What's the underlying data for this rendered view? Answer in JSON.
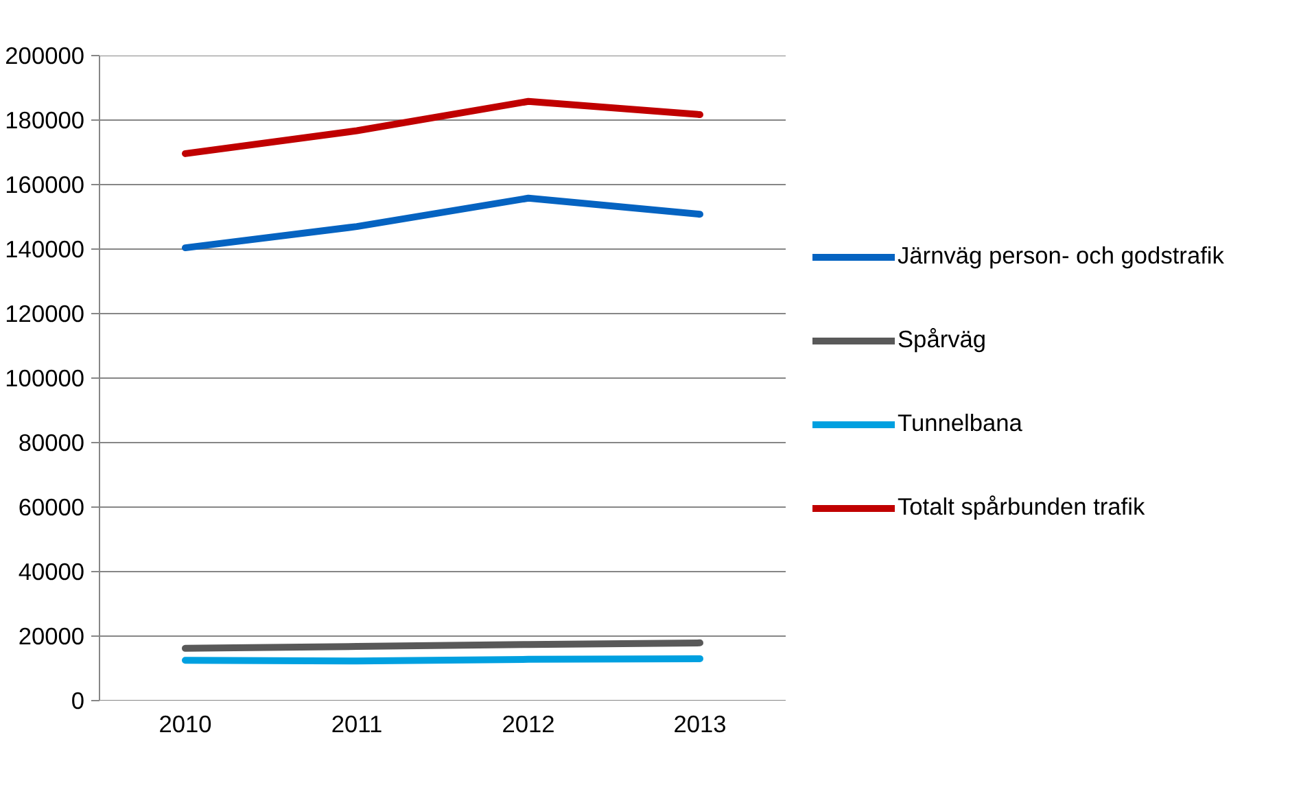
{
  "chart_data": {
    "type": "line",
    "categories": [
      "2010",
      "2011",
      "2012",
      "2013"
    ],
    "series": [
      {
        "name": "Järnväg person- och godstrafik",
        "color": "#0563c1",
        "values": [
          140400,
          147000,
          155800,
          150800
        ]
      },
      {
        "name": "Spårväg",
        "color": "#595959",
        "values": [
          16200,
          16800,
          17400,
          17900
        ]
      },
      {
        "name": "Tunnelbana",
        "color": "#00a0e0",
        "values": [
          12500,
          12300,
          12800,
          13000
        ]
      },
      {
        "name": "Totalt spårbunden trafik",
        "color": "#c00000",
        "values": [
          169600,
          176700,
          185800,
          181700
        ]
      }
    ],
    "ylim": [
      0,
      200000
    ],
    "yticks": [
      0,
      20000,
      40000,
      60000,
      80000,
      100000,
      120000,
      140000,
      160000,
      180000,
      200000
    ],
    "grid": "y",
    "legend": "right",
    "marker": "none",
    "line_style": "solid"
  }
}
